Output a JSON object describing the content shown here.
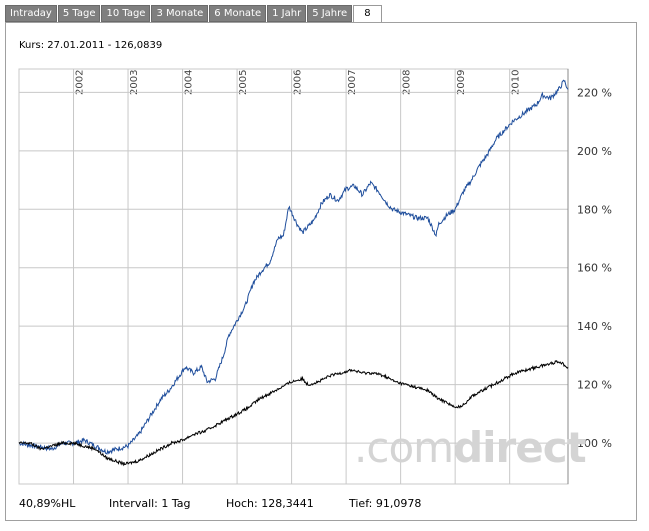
{
  "tabs": [
    {
      "label": "Intraday",
      "active": false
    },
    {
      "label": "5 Tage",
      "active": false
    },
    {
      "label": "10 Tage",
      "active": false
    },
    {
      "label": "3 Monate",
      "active": false
    },
    {
      "label": "6 Monate",
      "active": false
    },
    {
      "label": "1 Jahr",
      "active": false
    },
    {
      "label": "5 Jahre",
      "active": false
    },
    {
      "label": "8",
      "active": true
    }
  ],
  "kurs_label": "Kurs: 27.01.2011 - 126,0839",
  "watermark": {
    "light": ".com",
    "bold": "direct"
  },
  "footer": {
    "hl": "40,89%HL",
    "intervall": "Intervall: 1 Tag",
    "hoch": "Hoch: 128,3441",
    "tief": "Tief: 91,0978"
  },
  "colors": {
    "fund": "#1f4e9c",
    "benchmark": "#000000",
    "grid": "#c8c8c8"
  },
  "chart_data": {
    "type": "line",
    "xlabel": "",
    "ylabel": "",
    "x_tick_labels": [
      "2002",
      "2003",
      "2004",
      "2005",
      "2006",
      "2007",
      "2008",
      "2009",
      "2010"
    ],
    "y_tick_labels": [
      "100 %",
      "120 %",
      "140 %",
      "160 %",
      "180 %",
      "200 %",
      "220 %"
    ],
    "ylim": [
      86,
      228
    ],
    "xlim": [
      2001.0,
      2011.07
    ],
    "grid": true,
    "y_axis_position": "right",
    "series": [
      {
        "color": "#1f4e9c",
        "x": [
          2001.0,
          2001.3,
          2001.6,
          2001.8,
          2002.0,
          2002.2,
          2002.4,
          2002.6,
          2002.8,
          2003.0,
          2003.2,
          2003.4,
          2003.6,
          2003.75,
          2003.9,
          2004.05,
          2004.2,
          2004.35,
          2004.45,
          2004.6,
          2004.75,
          2004.85,
          2005.0,
          2005.15,
          2005.3,
          2005.45,
          2005.6,
          2005.75,
          2005.85,
          2005.95,
          2006.1,
          2006.2,
          2006.3,
          2006.4,
          2006.55,
          2006.7,
          2006.85,
          2007.0,
          2007.15,
          2007.3,
          2007.45,
          2007.6,
          2007.75,
          2007.85,
          2008.0,
          2008.15,
          2008.3,
          2008.5,
          2008.65,
          2008.7,
          2008.85,
          2009.0,
          2009.15,
          2009.3,
          2009.45,
          2009.6,
          2009.75,
          2009.9,
          2010.05,
          2010.2,
          2010.35,
          2010.5,
          2010.6,
          2010.75,
          2010.9,
          2011.0,
          2011.07
        ],
        "y": [
          100,
          99,
          98,
          100,
          100,
          101,
          99,
          97,
          98,
          99,
          103,
          109,
          115,
          118,
          122,
          126,
          124,
          126,
          121,
          122,
          130,
          137,
          142,
          147,
          155,
          159,
          162,
          170,
          171,
          181,
          175,
          172,
          174,
          176,
          182,
          185,
          183,
          187,
          188,
          185,
          189,
          186,
          182,
          180,
          179,
          178,
          177,
          177,
          171,
          175,
          178,
          180,
          186,
          190,
          195,
          199,
          204,
          207,
          210,
          212,
          214,
          216,
          219,
          218,
          221,
          224,
          221
        ]
      },
      {
        "color": "#000000",
        "x": [
          2001.0,
          2001.2,
          2001.4,
          2001.6,
          2001.8,
          2002.0,
          2002.2,
          2002.4,
          2002.6,
          2002.75,
          2002.9,
          2003.0,
          2003.2,
          2003.4,
          2003.6,
          2003.8,
          2004.0,
          2004.2,
          2004.4,
          2004.6,
          2004.8,
          2005.0,
          2005.2,
          2005.4,
          2005.6,
          2005.8,
          2006.0,
          2006.2,
          2006.3,
          2006.5,
          2006.7,
          2006.9,
          2007.1,
          2007.3,
          2007.5,
          2007.7,
          2007.9,
          2008.1,
          2008.3,
          2008.5,
          2008.7,
          2008.85,
          2009.0,
          2009.15,
          2009.3,
          2009.5,
          2009.7,
          2009.9,
          2010.1,
          2010.3,
          2010.5,
          2010.7,
          2010.9,
          2011.07
        ],
        "y": [
          100,
          100,
          98,
          99,
          100,
          100,
          99,
          98,
          95,
          94,
          93,
          93,
          94,
          96,
          98,
          100,
          101,
          103,
          104,
          106,
          108,
          110,
          112,
          115,
          117,
          119,
          121,
          122,
          120,
          121,
          123,
          124,
          125,
          124,
          124,
          123,
          121,
          120,
          119,
          118,
          115,
          114,
          112,
          113,
          116,
          118,
          120,
          122,
          124,
          125,
          126,
          127,
          128,
          126
        ]
      }
    ]
  }
}
